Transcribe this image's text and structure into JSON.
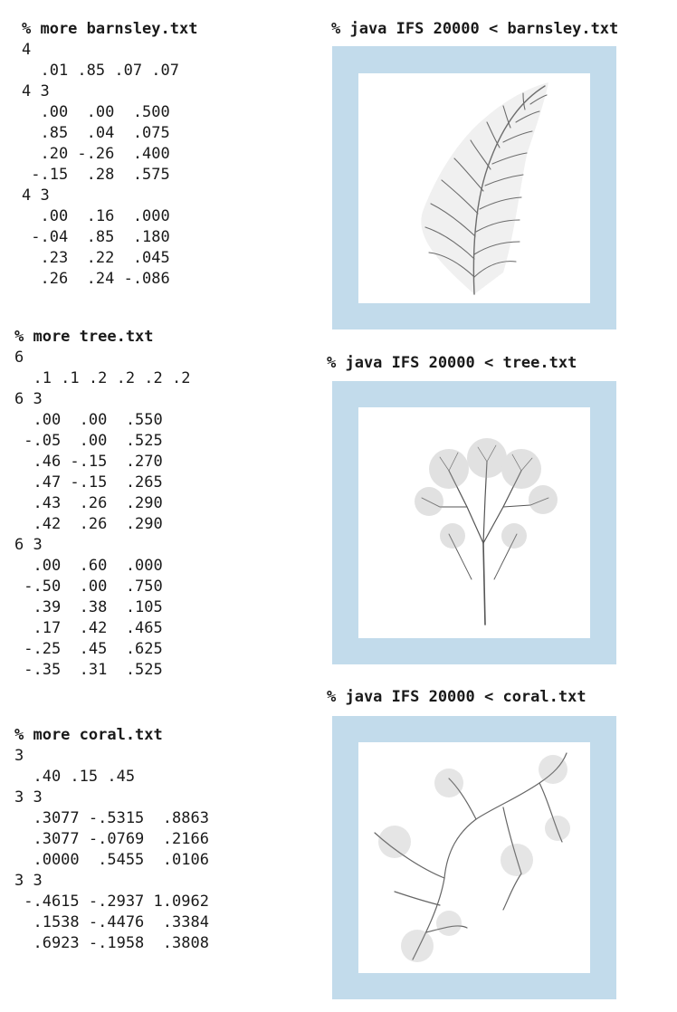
{
  "barnsley": {
    "command": "% more barnsley.txt",
    "lines": [
      "4",
      "  .01 .85 .07 .07",
      "4 3",
      "  .00  .00  .500",
      "  .85  .04  .075",
      "  .20 -.26  .400",
      " -.15  .28  .575",
      "4 3",
      "  .00  .16  .000",
      " -.04  .85  .180",
      "  .23  .22  .045",
      "  .26  .24 -.086"
    ],
    "run_command": "% java IFS 20000 < barnsley.txt"
  },
  "tree": {
    "command": "% more tree.txt",
    "lines": [
      "6",
      "  .1 .1 .2 .2 .2 .2",
      "6 3",
      "  .00  .00  .550",
      " -.05  .00  .525",
      "  .46 -.15  .270",
      "  .47 -.15  .265",
      "  .43  .26  .290",
      "  .42  .26  .290",
      "6 3",
      "  .00  .60  .000",
      " -.50  .00  .750",
      "  .39  .38  .105",
      "  .17  .42  .465",
      " -.25  .45  .625",
      " -.35  .31  .525"
    ],
    "run_command": "% java IFS 20000 < tree.txt"
  },
  "coral": {
    "command": "% more coral.txt",
    "lines": [
      "3",
      "  .40 .15 .45",
      "3 3",
      "  .3077 -.5315  .8863",
      "  .3077 -.0769  .2166",
      "  .0000  .5455  .0106",
      "3 3",
      " -.4615 -.2937 1.0962",
      "  .1538 -.4476  .3384",
      "  .6923 -.1958  .3808"
    ],
    "run_command": "% java IFS 20000 < coral.txt"
  },
  "colors": {
    "frame": "#c2dbeb",
    "ink": "#555555"
  }
}
